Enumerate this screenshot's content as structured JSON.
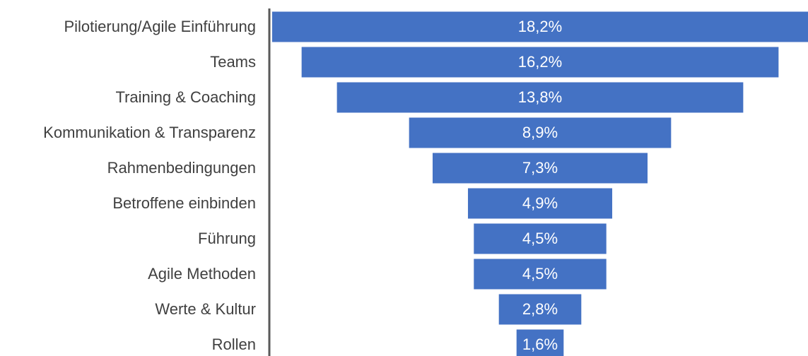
{
  "chart_data": {
    "type": "funnel",
    "categories": [
      "Pilotierung/Agile Einführung",
      "Teams",
      "Training & Coaching",
      "Kommunikation & Transparenz",
      "Rahmenbedingungen",
      "Betroffene einbinden",
      "Führung",
      "Agile Methoden",
      "Werte & Kultur",
      "Rollen"
    ],
    "values": [
      18.2,
      16.2,
      13.8,
      8.9,
      7.3,
      4.9,
      4.5,
      4.5,
      2.8,
      1.6
    ],
    "value_labels": [
      "18,2%",
      "16,2%",
      "13,8%",
      "8,9%",
      "7,3%",
      "4,9%",
      "4,5%",
      "4,5%",
      "2,8%",
      "1,6%"
    ],
    "color": "#4472c4"
  }
}
